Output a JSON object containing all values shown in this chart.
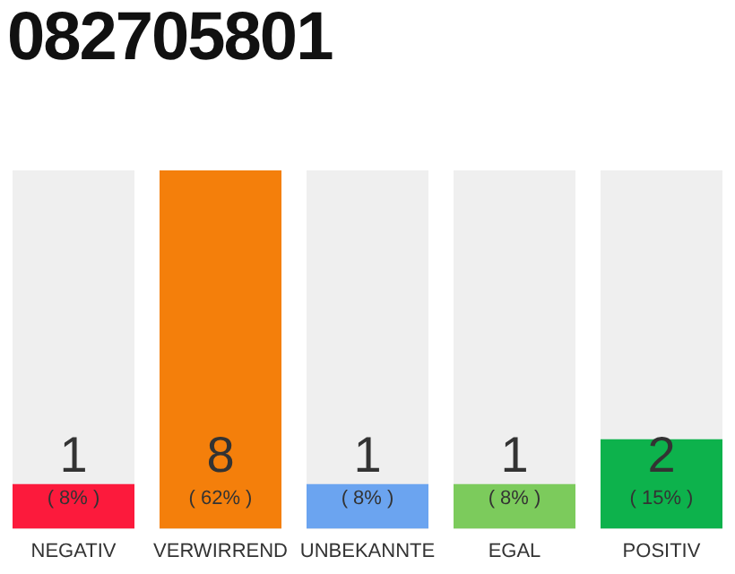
{
  "chart_data": {
    "type": "bar",
    "title": "082705801",
    "categories": [
      "NEGATIV",
      "VERWIRREND",
      "UNBEKANNTE",
      "EGAL",
      "POSITIV"
    ],
    "values": [
      1,
      8,
      1,
      1,
      2
    ],
    "colors": [
      "#fc1a3c",
      "#f47f0b",
      "#6ba4f0",
      "#7ccb5c",
      "#0db24c"
    ],
    "value_labels": [
      "1",
      "8",
      "1",
      "1",
      "2"
    ],
    "annotations": [
      "( 8% )",
      "( 62% )",
      "( 8% )",
      "( 8% )",
      "( 15% )"
    ],
    "grid": false,
    "legend": false
  }
}
